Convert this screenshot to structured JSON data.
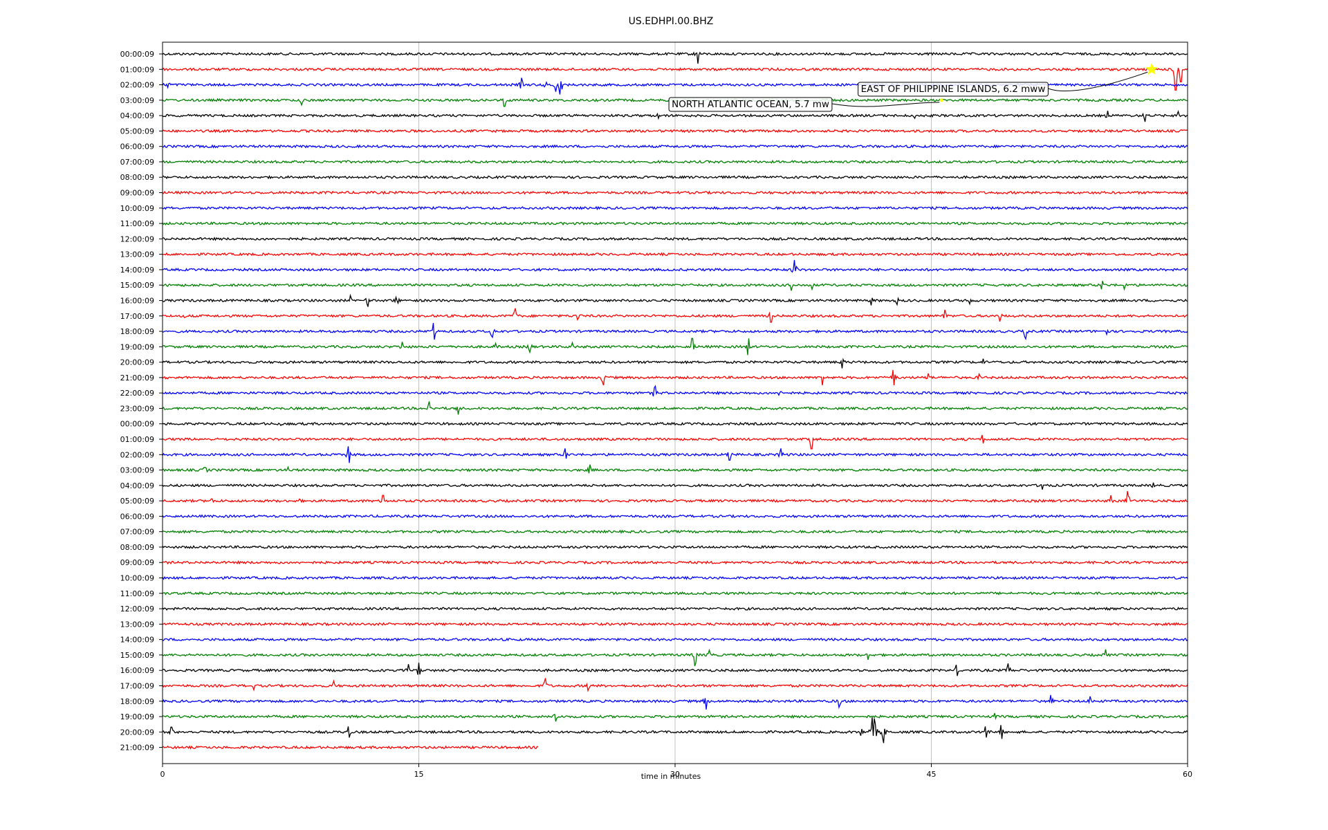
{
  "chart_data": {
    "type": "line",
    "title": "US.EDHPI.00.BHZ",
    "xlabel": "time in minutes",
    "xlim": [
      0,
      60
    ],
    "xticks": [
      0,
      15,
      30,
      45,
      60
    ],
    "xtick_labels": [
      "0",
      "15",
      "30",
      "45",
      "60"
    ],
    "grid_x": true,
    "row_colors": [
      "#000000",
      "#ff0000",
      "#0000ff",
      "#008000"
    ],
    "rows": [
      {
        "label": "00:00:09",
        "end": 60,
        "events": [
          [
            31.3,
            14
          ]
        ]
      },
      {
        "label": "01:00:09",
        "end": 60,
        "events": [
          [
            59.3,
            30
          ],
          [
            59.6,
            18
          ]
        ]
      },
      {
        "label": "02:00:09",
        "end": 60,
        "events": [
          [
            0.3,
            8
          ],
          [
            21,
            10
          ],
          [
            22.4,
            8
          ],
          [
            23,
            10
          ],
          [
            23.3,
            14
          ]
        ]
      },
      {
        "label": "03:00:09",
        "end": 60,
        "events": [
          [
            8.1,
            7
          ],
          [
            20,
            9
          ]
        ]
      },
      {
        "label": "04:00:09",
        "end": 60,
        "events": [
          [
            55.3,
            7
          ],
          [
            57.5,
            9
          ],
          [
            59.5,
            6
          ],
          [
            29,
            4
          ],
          [
            44,
            4
          ]
        ]
      },
      {
        "label": "05:00:09",
        "end": 60,
        "events": []
      },
      {
        "label": "06:00:09",
        "end": 60,
        "events": []
      },
      {
        "label": "07:00:09",
        "end": 60,
        "events": []
      },
      {
        "label": "08:00:09",
        "end": 60,
        "events": []
      },
      {
        "label": "09:00:09",
        "end": 60,
        "events": []
      },
      {
        "label": "10:00:09",
        "end": 60,
        "events": []
      },
      {
        "label": "11:00:09",
        "end": 60,
        "events": []
      },
      {
        "label": "12:00:09",
        "end": 60,
        "events": []
      },
      {
        "label": "13:00:09",
        "end": 60,
        "events": []
      },
      {
        "label": "14:00:09",
        "end": 60,
        "events": [
          [
            37,
            14
          ]
        ]
      },
      {
        "label": "15:00:09",
        "end": 60,
        "events": [
          [
            36.8,
            8
          ],
          [
            38,
            6
          ],
          [
            55,
            6
          ],
          [
            56.3,
            6
          ]
        ]
      },
      {
        "label": "16:00:09",
        "end": 60,
        "events": [
          [
            11,
            8
          ],
          [
            12,
            9
          ],
          [
            13.7,
            10
          ],
          [
            41.5,
            7
          ],
          [
            43,
            6
          ],
          [
            47.2,
            5
          ]
        ]
      },
      {
        "label": "17:00:09",
        "end": 60,
        "events": [
          [
            1.3,
            6
          ],
          [
            20.6,
            11
          ],
          [
            24.3,
            9
          ],
          [
            35.6,
            9
          ],
          [
            45.8,
            9
          ],
          [
            49,
            8
          ]
        ]
      },
      {
        "label": "18:00:09",
        "end": 60,
        "events": [
          [
            15.9,
            12
          ],
          [
            19.3,
            12
          ],
          [
            50.5,
            11
          ],
          [
            55.2,
            12
          ]
        ]
      },
      {
        "label": "19:00:09",
        "end": 60,
        "events": [
          [
            14,
            7
          ],
          [
            19.5,
            7
          ],
          [
            21.5,
            8
          ],
          [
            31,
            12
          ],
          [
            34.3,
            12
          ],
          [
            24,
            6
          ]
        ]
      },
      {
        "label": "20:00:09",
        "end": 60,
        "events": [
          [
            39.8,
            9
          ],
          [
            48,
            5
          ]
        ]
      },
      {
        "label": "21:00:09",
        "end": 60,
        "events": [
          [
            25.8,
            11
          ],
          [
            38.6,
            11
          ],
          [
            42.8,
            11
          ],
          [
            44.8,
            6
          ],
          [
            47.8,
            6
          ]
        ]
      },
      {
        "label": "22:00:09",
        "end": 60,
        "events": [
          [
            28.8,
            10
          ],
          [
            36.2,
            11
          ]
        ]
      },
      {
        "label": "23:00:09",
        "end": 60,
        "events": [
          [
            15.6,
            10
          ],
          [
            17.3,
            9
          ]
        ]
      },
      {
        "label": "00:00:09",
        "end": 60,
        "events": [
          [
            7,
            7
          ]
        ]
      },
      {
        "label": "01:00:09",
        "end": 60,
        "events": [
          [
            38,
            14
          ],
          [
            48,
            6
          ]
        ]
      },
      {
        "label": "02:00:09",
        "end": 60,
        "events": [
          [
            10.9,
            12
          ],
          [
            23.6,
            9
          ],
          [
            33.2,
            8
          ],
          [
            36.2,
            9
          ]
        ]
      },
      {
        "label": "03:00:09",
        "end": 60,
        "events": [
          [
            2.5,
            8
          ],
          [
            7.4,
            7
          ],
          [
            25,
            8
          ]
        ]
      },
      {
        "label": "04:00:09",
        "end": 60,
        "events": [
          [
            51.5,
            6
          ],
          [
            58,
            5
          ]
        ]
      },
      {
        "label": "05:00:09",
        "end": 60,
        "events": [
          [
            2.9,
            6
          ],
          [
            8,
            6
          ],
          [
            12.9,
            8
          ],
          [
            55.5,
            8
          ],
          [
            56.5,
            14
          ]
        ]
      },
      {
        "label": "06:00:09",
        "end": 60,
        "events": []
      },
      {
        "label": "07:00:09",
        "end": 60,
        "events": []
      },
      {
        "label": "08:00:09",
        "end": 60,
        "events": []
      },
      {
        "label": "09:00:09",
        "end": 60,
        "events": []
      },
      {
        "label": "10:00:09",
        "end": 60,
        "events": []
      },
      {
        "label": "11:00:09",
        "end": 60,
        "events": []
      },
      {
        "label": "12:00:09",
        "end": 60,
        "events": []
      },
      {
        "label": "13:00:09",
        "end": 60,
        "events": []
      },
      {
        "label": "14:00:09",
        "end": 60,
        "events": []
      },
      {
        "label": "15:00:09",
        "end": 60,
        "events": [
          [
            31.2,
            16
          ],
          [
            32,
            7
          ],
          [
            41.3,
            7
          ],
          [
            55.2,
            8
          ]
        ]
      },
      {
        "label": "16:00:09",
        "end": 60,
        "events": [
          [
            14.4,
            9
          ],
          [
            15,
            11
          ],
          [
            46.5,
            8
          ],
          [
            49.5,
            10
          ]
        ]
      },
      {
        "label": "17:00:09",
        "end": 60,
        "events": [
          [
            5.3,
            6
          ],
          [
            10,
            7
          ],
          [
            22.4,
            11
          ],
          [
            24.9,
            7
          ]
        ]
      },
      {
        "label": "18:00:09",
        "end": 60,
        "events": [
          [
            31.8,
            12
          ],
          [
            39.6,
            9
          ],
          [
            52,
            9
          ],
          [
            54.3,
            7
          ]
        ]
      },
      {
        "label": "19:00:09",
        "end": 60,
        "events": [
          [
            23,
            7
          ],
          [
            48.7,
            5
          ]
        ]
      },
      {
        "label": "20:00:09",
        "end": 60,
        "events": [
          [
            0.5,
            7
          ],
          [
            10.9,
            8
          ],
          [
            41.6,
            38
          ],
          [
            42.2,
            16
          ],
          [
            40.9,
            8
          ],
          [
            48.2,
            8
          ],
          [
            49.1,
            10
          ]
        ]
      },
      {
        "label": "21:00:09",
        "end": 22,
        "events": []
      }
    ],
    "annotations": [
      {
        "text": "EAST OF PHILIPPINE ISLANDS, 6.2 mww",
        "row": 1,
        "minute": 57.9
      },
      {
        "text": "NORTH ATLANTIC OCEAN, 5.7 mw",
        "row": 3,
        "minute": 45.6
      }
    ]
  }
}
